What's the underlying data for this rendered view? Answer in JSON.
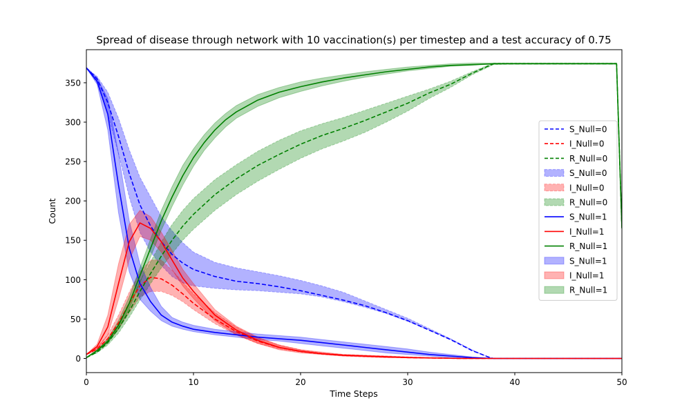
{
  "chart_data": {
    "type": "line",
    "title": "Spread of disease through network with 10 vaccination(s) per timestep and a test accuracy of 0.75",
    "xlabel": "Time Steps",
    "ylabel": "Count",
    "xlim": [
      0,
      50
    ],
    "ylim": [
      -18,
      392
    ],
    "xticks": [
      0,
      10,
      20,
      30,
      40,
      50
    ],
    "yticks": [
      0,
      50,
      100,
      150,
      200,
      250,
      300,
      350
    ],
    "legend_position": "center-right",
    "series": [
      {
        "name": "S_Null=0",
        "line_label": "S_Null=0",
        "band_label": "S_Null=0",
        "color": "#0000ff",
        "style": "dashed",
        "x": [
          0,
          1,
          2,
          3,
          4,
          5,
          6,
          7,
          8,
          9,
          10,
          12,
          14,
          16,
          18,
          20,
          22,
          24,
          26,
          28,
          30,
          32,
          34,
          36,
          37.5,
          38,
          40,
          45,
          50
        ],
        "values": [
          369,
          355,
          325,
          282,
          235,
          195,
          168,
          148,
          132,
          121,
          113,
          104,
          98,
          95,
          91,
          86,
          80,
          74,
          67,
          58,
          48,
          36,
          24,
          10,
          2,
          0,
          0,
          0,
          0
        ],
        "lower": [
          369,
          350,
          310,
          260,
          205,
          160,
          135,
          118,
          104,
          96,
          92,
          89,
          87,
          86,
          84,
          82,
          78,
          72,
          65,
          57,
          47,
          36,
          24,
          10,
          2,
          0,
          0,
          0,
          0
        ],
        "upper": [
          369,
          358,
          338,
          305,
          265,
          230,
          205,
          180,
          162,
          147,
          135,
          122,
          115,
          110,
          105,
          99,
          92,
          84,
          73,
          62,
          51,
          38,
          25,
          11,
          2,
          0,
          0,
          0,
          0
        ]
      },
      {
        "name": "I_Null=0",
        "line_label": "I_Null=0",
        "band_label": "I_Null=0",
        "color": "#ff0000",
        "style": "dashed",
        "x": [
          0,
          1,
          2,
          3,
          4,
          5,
          6,
          7,
          8,
          9,
          10,
          12,
          14,
          16,
          18,
          20,
          22,
          24,
          26,
          28,
          30,
          35,
          40,
          45,
          50
        ],
        "values": [
          5,
          12,
          25,
          45,
          70,
          92,
          103,
          101,
          93,
          82,
          70,
          50,
          34,
          22,
          14,
          9,
          6,
          4,
          3,
          2,
          1,
          0,
          0,
          0,
          0
        ],
        "lower": [
          5,
          10,
          20,
          37,
          58,
          78,
          85,
          85,
          80,
          72,
          62,
          44,
          30,
          19,
          12,
          8,
          5,
          3,
          2,
          1,
          1,
          0,
          0,
          0,
          0
        ],
        "upper": [
          5,
          14,
          30,
          55,
          84,
          110,
          125,
          125,
          112,
          97,
          82,
          58,
          40,
          26,
          17,
          11,
          7,
          5,
          4,
          3,
          2,
          0,
          0,
          0,
          0
        ]
      },
      {
        "name": "R_Null=0",
        "line_label": "R_Null=0",
        "band_label": "R_Null=0",
        "color": "#008000",
        "style": "dashed",
        "x": [
          0,
          1,
          2,
          3,
          4,
          5,
          6,
          7,
          8,
          9,
          10,
          12,
          14,
          16,
          18,
          20,
          22,
          24,
          26,
          28,
          30,
          32,
          34,
          36,
          38,
          40,
          45,
          49.5,
          50
        ],
        "values": [
          1,
          8,
          20,
          38,
          60,
          85,
          108,
          130,
          150,
          168,
          183,
          208,
          228,
          245,
          259,
          272,
          283,
          292,
          302,
          313,
          324,
          337,
          348,
          362,
          374,
          374,
          374,
          374,
          165
        ],
        "lower": [
          1,
          7,
          17,
          32,
          52,
          74,
          95,
          115,
          133,
          150,
          164,
          188,
          208,
          225,
          240,
          254,
          266,
          276,
          287,
          300,
          314,
          330,
          344,
          360,
          373,
          374,
          374,
          374,
          165
        ],
        "upper": [
          1,
          9,
          23,
          44,
          70,
          98,
          123,
          148,
          170,
          188,
          203,
          227,
          246,
          263,
          277,
          289,
          298,
          306,
          315,
          324,
          333,
          342,
          352,
          364,
          375,
          375,
          375,
          375,
          165
        ]
      },
      {
        "name": "S_Null=1",
        "line_label": "S_Null=1",
        "band_label": "S_Null=1",
        "color": "#0000ff",
        "style": "solid",
        "x": [
          0,
          1,
          2,
          3,
          4,
          5,
          6,
          7,
          8,
          9,
          10,
          12,
          14,
          16,
          18,
          20,
          22,
          24,
          26,
          28,
          30,
          32,
          34,
          36,
          38,
          40,
          45,
          50
        ],
        "values": [
          369,
          352,
          310,
          220,
          140,
          95,
          72,
          55,
          46,
          41,
          37,
          33,
          30,
          27,
          25,
          23,
          20,
          17,
          14,
          11,
          8,
          5,
          3,
          1,
          0,
          0,
          0,
          0
        ],
        "lower": [
          369,
          348,
          290,
          185,
          110,
          75,
          60,
          48,
          41,
          37,
          34,
          30,
          27,
          24,
          22,
          19,
          16,
          13,
          10,
          7,
          5,
          3,
          1,
          0,
          0,
          0,
          0,
          0
        ],
        "upper": [
          369,
          356,
          330,
          260,
          175,
          120,
          90,
          66,
          52,
          46,
          42,
          37,
          34,
          31,
          29,
          27,
          24,
          21,
          18,
          15,
          12,
          8,
          5,
          2,
          0,
          0,
          0,
          0
        ]
      },
      {
        "name": "I_Null=1",
        "line_label": "I_Null=1",
        "band_label": "I_Null=1",
        "color": "#ff0000",
        "style": "solid",
        "x": [
          0,
          1,
          2,
          3,
          4,
          5,
          6,
          7,
          8,
          9,
          10,
          12,
          14,
          16,
          18,
          20,
          22,
          24,
          26,
          28,
          30,
          35,
          40,
          45,
          50
        ],
        "values": [
          5,
          15,
          40,
          95,
          148,
          172,
          165,
          148,
          125,
          102,
          85,
          55,
          36,
          23,
          14,
          9,
          6,
          4,
          3,
          2,
          1,
          0,
          0,
          0,
          0
        ],
        "lower": [
          5,
          12,
          30,
          75,
          125,
          155,
          150,
          135,
          113,
          92,
          76,
          48,
          30,
          19,
          11,
          7,
          5,
          3,
          2,
          1,
          1,
          0,
          0,
          0,
          0
        ],
        "upper": [
          5,
          18,
          55,
          120,
          170,
          188,
          180,
          160,
          137,
          113,
          95,
          62,
          41,
          27,
          17,
          11,
          8,
          5,
          4,
          3,
          2,
          0,
          0,
          0,
          0
        ]
      },
      {
        "name": "R_Null=1",
        "line_label": "R_Null=1",
        "band_label": "R_Null=1",
        "color": "#008000",
        "style": "solid",
        "x": [
          0,
          1,
          2,
          3,
          4,
          5,
          6,
          7,
          8,
          9,
          10,
          11,
          12,
          13,
          14,
          16,
          18,
          20,
          22,
          24,
          26,
          28,
          30,
          32,
          34,
          36,
          38,
          40,
          45,
          49.5,
          50
        ],
        "values": [
          1,
          10,
          22,
          42,
          70,
          105,
          140,
          175,
          205,
          232,
          255,
          274,
          290,
          303,
          313,
          328,
          338,
          345,
          351,
          356,
          360,
          364,
          367,
          370,
          372,
          373,
          374,
          374,
          374,
          374,
          165
        ],
        "lower": [
          1,
          9,
          20,
          37,
          63,
          96,
          129,
          163,
          193,
          220,
          244,
          264,
          280,
          294,
          305,
          320,
          331,
          339,
          346,
          352,
          357,
          361,
          365,
          368,
          371,
          372,
          374,
          374,
          374,
          374,
          165
        ],
        "upper": [
          1,
          11,
          25,
          48,
          78,
          115,
          152,
          188,
          218,
          245,
          266,
          284,
          299,
          311,
          321,
          335,
          344,
          351,
          356,
          360,
          364,
          367,
          370,
          372,
          374,
          375,
          375,
          375,
          375,
          375,
          165
        ]
      }
    ]
  }
}
